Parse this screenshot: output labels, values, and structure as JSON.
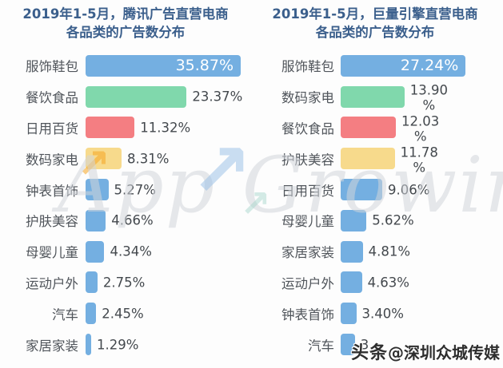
{
  "page": {
    "background": "#fdfdfd"
  },
  "colors": {
    "title": "#3b5f8c",
    "category_label": "#50555b",
    "value_label": "#43484d",
    "value_inside": "#ffffff",
    "bar_blue": "#74afe1",
    "bar_green": "#80d8ac",
    "bar_red": "#f47e82",
    "bar_yellow": "#f7da8c"
  },
  "watermark_center": {
    "text": "App Growing",
    "orange_arrow_icon": "↗",
    "blue_arrow_icon": "↗",
    "teal_arrow_icon": "↗"
  },
  "watermark_bottom_right": {
    "prefix": "头条",
    "text": "@深圳众城传媒"
  },
  "chart_data": [
    {
      "type": "bar",
      "orientation": "horizontal",
      "title_line1": "2019年1-5月，腾讯广告直营电商",
      "title_line2": "各品类的广告数分布",
      "xlim": [
        0,
        35.87
      ],
      "grid": false,
      "legend": "none",
      "categories": [
        "服饰鞋包",
        "餐饮食品",
        "日用百货",
        "数码家电",
        "钟表首饰",
        "护肤美容",
        "母婴儿童",
        "运动户外",
        "汽车",
        "家居家装"
      ],
      "values": [
        35.87,
        23.37,
        11.32,
        8.31,
        5.27,
        4.66,
        4.34,
        2.75,
        2.45,
        1.29
      ],
      "rows": [
        {
          "category": "服饰鞋包",
          "value": 35.87,
          "label": "35.87%",
          "label_style": "inside",
          "color": "#74afe1"
        },
        {
          "category": "餐饮食品",
          "value": 23.37,
          "label": "23.37%",
          "label_style": "outside",
          "color": "#80d8ac"
        },
        {
          "category": "日用百货",
          "value": 11.32,
          "label": "11.32%",
          "label_style": "outside",
          "color": "#f47e82"
        },
        {
          "category": "数码家电",
          "value": 8.31,
          "label": "8.31%",
          "label_style": "outside",
          "color": "#f7da8c"
        },
        {
          "category": "钟表首饰",
          "value": 5.27,
          "label": "5.27%",
          "label_style": "outside",
          "color": "#74afe1"
        },
        {
          "category": "护肤美容",
          "value": 4.66,
          "label": "4.66%",
          "label_style": "outside",
          "color": "#74afe1"
        },
        {
          "category": "母婴儿童",
          "value": 4.34,
          "label": "4.34%",
          "label_style": "outside",
          "color": "#74afe1"
        },
        {
          "category": "运动户外",
          "value": 2.75,
          "label": "2.75%",
          "label_style": "outside",
          "color": "#74afe1"
        },
        {
          "category": "汽车",
          "value": 2.45,
          "label": "2.45%",
          "label_style": "outside",
          "color": "#74afe1"
        },
        {
          "category": "家居家装",
          "value": 1.29,
          "label": "1.29%",
          "label_style": "outside",
          "color": "#74afe1"
        }
      ]
    },
    {
      "type": "bar",
      "orientation": "horizontal",
      "title_line1": "2019年1-5月，巨量引擎直营电商",
      "title_line2": "各品类的广告数分布",
      "xlim": [
        0,
        27.24
      ],
      "grid": false,
      "legend": "none",
      "categories": [
        "服饰鞋包",
        "数码家电",
        "餐饮食品",
        "护肤美容",
        "日用百货",
        "母婴儿童",
        "家居家装",
        "运动户外",
        "钟表首饰",
        "汽车"
      ],
      "values": [
        27.24,
        13.9,
        12.03,
        11.78,
        9.06,
        5.62,
        4.81,
        4.63,
        3.4,
        3.1
      ],
      "rows": [
        {
          "category": "服饰鞋包",
          "value": 27.24,
          "label": "27.24%",
          "label_style": "inside",
          "color": "#74afe1"
        },
        {
          "category": "数码家电",
          "value": 13.9,
          "label": "13.90",
          "label_style": "wrapped",
          "pct": "%",
          "color": "#80d8ac"
        },
        {
          "category": "餐饮食品",
          "value": 12.03,
          "label": "12.03",
          "label_style": "wrapped",
          "pct": "%",
          "color": "#f47e82"
        },
        {
          "category": "护肤美容",
          "value": 11.78,
          "label": "11.78",
          "label_style": "wrapped",
          "pct": "%",
          "color": "#f7da8c"
        },
        {
          "category": "日用百货",
          "value": 9.06,
          "label": "9.06%",
          "label_style": "outside",
          "color": "#74afe1"
        },
        {
          "category": "母婴儿童",
          "value": 5.62,
          "label": "5.62%",
          "label_style": "outside",
          "color": "#74afe1"
        },
        {
          "category": "家居家装",
          "value": 4.81,
          "label": "4.81%",
          "label_style": "outside",
          "color": "#74afe1"
        },
        {
          "category": "运动户外",
          "value": 4.63,
          "label": "4.63%",
          "label_style": "outside",
          "color": "#74afe1"
        },
        {
          "category": "钟表首饰",
          "value": 3.4,
          "label": "3.40%",
          "label_style": "outside",
          "color": "#74afe1"
        },
        {
          "category": "汽车",
          "value": 3.1,
          "label": "3",
          "label_style": "outside",
          "color": "#74afe1"
        }
      ]
    }
  ]
}
